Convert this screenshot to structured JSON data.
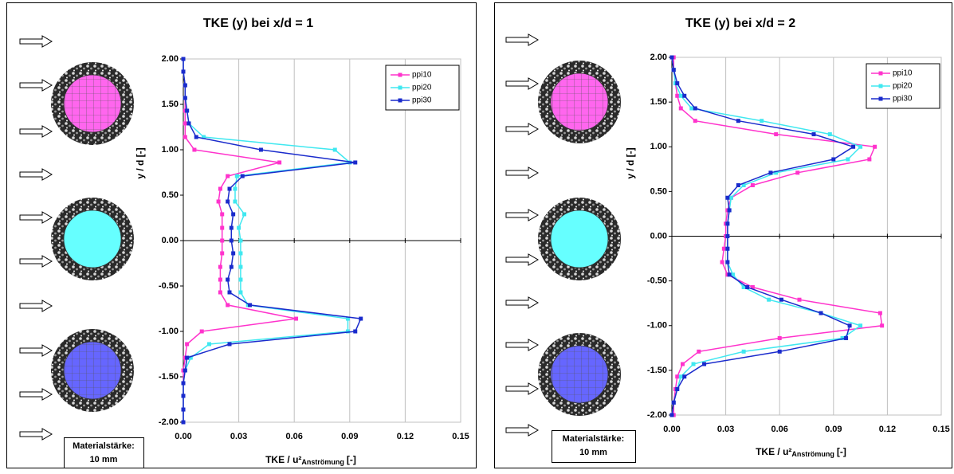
{
  "chart_data": [
    {
      "type": "line",
      "title": "TKE (y) bei x/d = 1",
      "xlabel": "TKE / u²",
      "xlabel_sub": "Anströmung",
      "xlabel_end": "[-]",
      "ylabel": "y / d [-]",
      "annotation": [
        "Materialstärke:",
        "10 mm"
      ],
      "xlim": [
        0,
        0.15
      ],
      "ylim": [
        -2,
        2
      ],
      "xticks": [
        {
          "value": 0,
          "label": "0.00"
        },
        {
          "value": 0.03,
          "label": "0.03"
        },
        {
          "value": 0.06,
          "label": "0.06"
        },
        {
          "value": 0.09,
          "label": "0.09"
        },
        {
          "value": 0.12,
          "label": "0.12"
        },
        {
          "value": 0.15,
          "label": "0.15"
        }
      ],
      "yticks": [
        {
          "value": 2,
          "label": "2.00"
        },
        {
          "value": 1.5,
          "label": "1.50"
        },
        {
          "value": 1,
          "label": "1.00"
        },
        {
          "value": 0.5,
          "label": "0.50"
        },
        {
          "value": 0,
          "label": "0.00"
        },
        {
          "value": -0.5,
          "label": "-0.50"
        },
        {
          "value": -1,
          "label": "-1.00"
        },
        {
          "value": -1.5,
          "label": "-1.50"
        },
        {
          "value": -2,
          "label": "-2.00"
        }
      ],
      "grid": true,
      "series": [
        {
          "name": "ppi10",
          "color": "#ff33cc",
          "x": [
            0.0,
            0.0,
            0.001,
            0.001,
            0.001,
            0.001,
            0.001,
            0.006,
            0.052,
            0.024,
            0.02,
            0.019,
            0.021,
            0.021,
            0.021,
            0.021,
            0.02,
            0.02,
            0.02,
            0.024,
            0.061,
            0.01,
            0.002,
            0.001,
            0.0,
            0.0,
            0.0,
            0.0,
            0.0
          ],
          "y": [
            2.0,
            1.86,
            1.71,
            1.57,
            1.43,
            1.29,
            1.14,
            1.0,
            0.86,
            0.71,
            0.57,
            0.43,
            0.29,
            0.14,
            0.0,
            -0.14,
            -0.29,
            -0.43,
            -0.57,
            -0.71,
            -0.86,
            -1.0,
            -1.14,
            -1.29,
            -1.43,
            -1.57,
            -1.71,
            -1.86,
            -2.0
          ]
        },
        {
          "name": "ppi20",
          "color": "#40e8f0",
          "x": [
            0.0,
            0.0,
            0.001,
            0.001,
            0.002,
            0.003,
            0.011,
            0.082,
            0.09,
            0.029,
            0.028,
            0.028,
            0.033,
            0.03,
            0.031,
            0.031,
            0.031,
            0.031,
            0.031,
            0.035,
            0.089,
            0.089,
            0.014,
            0.004,
            0.001,
            0.0,
            0.0,
            0.0,
            0.0
          ],
          "y": [
            2.0,
            1.86,
            1.71,
            1.57,
            1.43,
            1.29,
            1.14,
            1.0,
            0.86,
            0.71,
            0.57,
            0.43,
            0.29,
            0.14,
            0.0,
            -0.14,
            -0.29,
            -0.43,
            -0.57,
            -0.71,
            -0.86,
            -1.0,
            -1.14,
            -1.29,
            -1.43,
            -1.57,
            -1.71,
            -1.86,
            -2.0
          ]
        },
        {
          "name": "ppi30",
          "color": "#1a2bcc",
          "x": [
            0.0,
            0.0,
            0.001,
            0.001,
            0.002,
            0.003,
            0.007,
            0.042,
            0.093,
            0.032,
            0.025,
            0.024,
            0.027,
            0.026,
            0.026,
            0.027,
            0.026,
            0.024,
            0.025,
            0.036,
            0.096,
            0.093,
            0.025,
            0.002,
            0.001,
            0.0,
            0.0,
            0.0,
            0.0
          ],
          "y": [
            2.0,
            1.86,
            1.71,
            1.57,
            1.43,
            1.29,
            1.14,
            1.0,
            0.86,
            0.71,
            0.57,
            0.43,
            0.29,
            0.14,
            0.0,
            -0.14,
            -0.29,
            -0.43,
            -0.57,
            -0.71,
            -0.86,
            -1.0,
            -1.14,
            -1.29,
            -1.43,
            -1.57,
            -1.71,
            -1.86,
            -2.0
          ]
        }
      ]
    },
    {
      "type": "line",
      "title": "TKE (y) bei x/d = 2",
      "xlabel": "TKE / u²",
      "xlabel_sub": "Anströmung",
      "xlabel_end": "[-]",
      "ylabel": "y / d [-]",
      "annotation": [
        "Materialstärke:",
        "10 mm"
      ],
      "xlim": [
        0,
        0.15
      ],
      "ylim": [
        -2,
        2
      ],
      "xticks": [
        {
          "value": 0,
          "label": "0.00"
        },
        {
          "value": 0.03,
          "label": "0.03"
        },
        {
          "value": 0.06,
          "label": "0.06"
        },
        {
          "value": 0.09,
          "label": "0.09"
        },
        {
          "value": 0.12,
          "label": "0.12"
        },
        {
          "value": 0.15,
          "label": "0.15"
        }
      ],
      "yticks": [
        {
          "value": 2,
          "label": "2.00"
        },
        {
          "value": 1.5,
          "label": "1.50"
        },
        {
          "value": 1,
          "label": "1.00"
        },
        {
          "value": 0.5,
          "label": "0.50"
        },
        {
          "value": 0,
          "label": "0.00"
        },
        {
          "value": -0.5,
          "label": "-0.50"
        },
        {
          "value": -1,
          "label": "-1.00"
        },
        {
          "value": -1.5,
          "label": "-1.50"
        },
        {
          "value": -2,
          "label": "-2.00"
        }
      ],
      "grid": true,
      "series": [
        {
          "name": "ppi10",
          "color": "#ff33cc",
          "x": [
            0.001,
            0.001,
            0.002,
            0.003,
            0.005,
            0.013,
            0.058,
            0.113,
            0.11,
            0.07,
            0.045,
            0.033,
            0.031,
            0.03,
            0.03,
            0.029,
            0.028,
            0.031,
            0.045,
            0.071,
            0.116,
            0.117,
            0.06,
            0.015,
            0.006,
            0.003,
            0.002,
            0.001,
            0.001
          ],
          "y": [
            2.0,
            1.86,
            1.71,
            1.57,
            1.43,
            1.29,
            1.14,
            1.0,
            0.86,
            0.71,
            0.57,
            0.43,
            0.29,
            0.14,
            0.0,
            -0.14,
            -0.29,
            -0.43,
            -0.57,
            -0.71,
            -0.86,
            -1.0,
            -1.14,
            -1.29,
            -1.43,
            -1.57,
            -1.71,
            -1.86,
            -2.0
          ]
        },
        {
          "name": "ppi20",
          "color": "#40e8f0",
          "x": [
            0.0,
            0.001,
            0.002,
            0.005,
            0.011,
            0.05,
            0.088,
            0.105,
            0.098,
            0.058,
            0.04,
            0.033,
            0.032,
            0.031,
            0.031,
            0.031,
            0.031,
            0.034,
            0.04,
            0.054,
            0.083,
            0.105,
            0.095,
            0.04,
            0.012,
            0.005,
            0.003,
            0.001,
            0.0
          ],
          "y": [
            2.0,
            1.86,
            1.71,
            1.57,
            1.43,
            1.29,
            1.14,
            1.0,
            0.86,
            0.71,
            0.57,
            0.43,
            0.29,
            0.14,
            0.0,
            -0.14,
            -0.29,
            -0.43,
            -0.57,
            -0.71,
            -0.86,
            -1.0,
            -1.14,
            -1.29,
            -1.43,
            -1.57,
            -1.71,
            -1.86,
            -2.0
          ]
        },
        {
          "name": "ppi30",
          "color": "#1a2bcc",
          "x": [
            0.0,
            0.001,
            0.003,
            0.007,
            0.013,
            0.037,
            0.079,
            0.101,
            0.09,
            0.055,
            0.037,
            0.031,
            0.032,
            0.031,
            0.031,
            0.031,
            0.031,
            0.032,
            0.042,
            0.061,
            0.083,
            0.099,
            0.097,
            0.06,
            0.018,
            0.007,
            0.003,
            0.001,
            0.0
          ],
          "y": [
            2.0,
            1.86,
            1.71,
            1.57,
            1.43,
            1.29,
            1.14,
            1.0,
            0.86,
            0.71,
            0.57,
            0.43,
            0.29,
            0.14,
            0.0,
            -0.14,
            -0.29,
            -0.43,
            -0.57,
            -0.71,
            -0.86,
            -1.0,
            -1.14,
            -1.29,
            -1.43,
            -1.57,
            -1.71,
            -1.86,
            -2.0
          ]
        }
      ]
    }
  ]
}
